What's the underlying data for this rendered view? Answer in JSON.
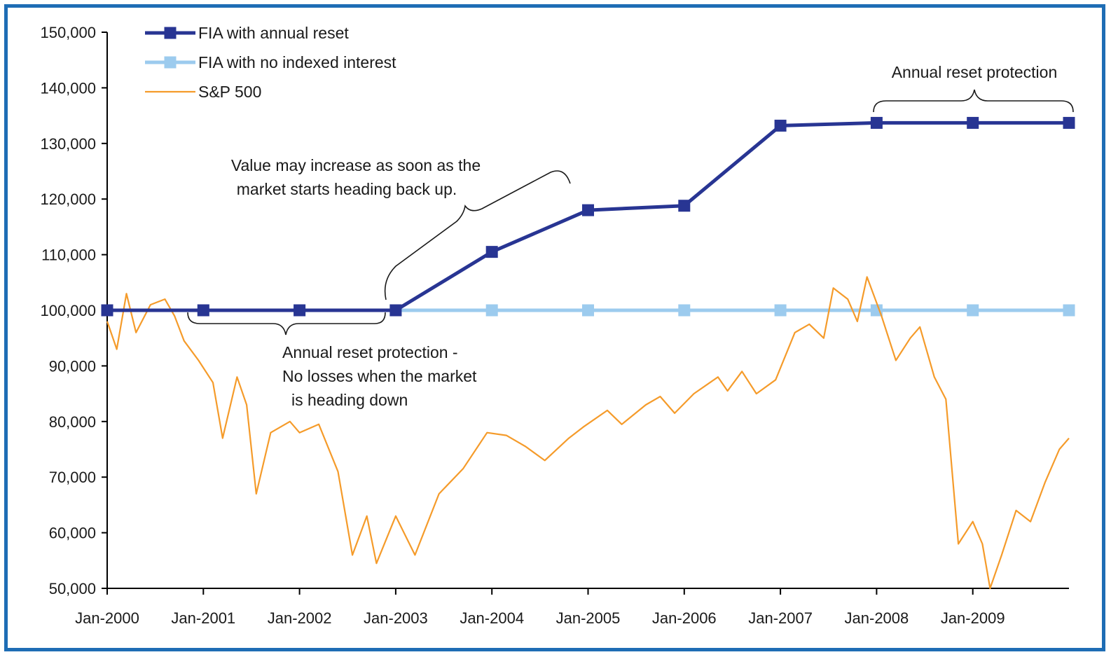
{
  "colors": {
    "frame": "#1e6db5",
    "fia_reset": "#283593",
    "fia_no_interest": "#9ccbee",
    "sp500": "#f59b2a",
    "axis": "#000000"
  },
  "chart_data": {
    "type": "line",
    "title": "",
    "xlabel": "",
    "ylabel": "",
    "ylim": [
      50000,
      150000
    ],
    "yticks": [
      "150,000",
      "140,000",
      "130,000",
      "120,000",
      "110,000",
      "100,000",
      "90,000",
      "80,000",
      "70,000",
      "60,000",
      "50,000"
    ],
    "xlim": [
      2000.0,
      2010.0
    ],
    "xticks": [
      "Jan-2000",
      "Jan-2001",
      "Jan-2002",
      "Jan-2003",
      "Jan-2004",
      "Jan-2005",
      "Jan-2006",
      "Jan-2007",
      "Jan-2008",
      "Jan-2009"
    ],
    "grid": false,
    "legend_position": "top-left",
    "series": [
      {
        "name": "FIA with annual reset",
        "marker": "square",
        "x": [
          2000,
          2001,
          2002,
          2003,
          2004,
          2005,
          2006,
          2007,
          2008,
          2009,
          2010
        ],
        "values": [
          100000,
          100000,
          100000,
          100000,
          110500,
          118000,
          118800,
          133200,
          133700,
          133700,
          133700
        ]
      },
      {
        "name": "FIA with no indexed interest",
        "marker": "square",
        "x": [
          2000,
          2001,
          2002,
          2003,
          2004,
          2005,
          2006,
          2007,
          2008,
          2009,
          2010
        ],
        "values": [
          100000,
          100000,
          100000,
          100000,
          100000,
          100000,
          100000,
          100000,
          100000,
          100000,
          100000
        ]
      },
      {
        "name": "S&P 500",
        "marker": "none",
        "x": [
          2000.0,
          2000.1,
          2000.2,
          2000.3,
          2000.45,
          2000.6,
          2000.7,
          2000.8,
          2000.95,
          2001.1,
          2001.2,
          2001.35,
          2001.45,
          2001.55,
          2001.7,
          2001.9,
          2002.0,
          2002.2,
          2002.4,
          2002.55,
          2002.7,
          2002.8,
          2003.0,
          2003.2,
          2003.45,
          2003.7,
          2003.95,
          2004.15,
          2004.35,
          2004.55,
          2004.8,
          2004.95,
          2005.2,
          2005.35,
          2005.6,
          2005.75,
          2005.9,
          2006.1,
          2006.35,
          2006.45,
          2006.6,
          2006.75,
          2006.95,
          2007.15,
          2007.3,
          2007.45,
          2007.55,
          2007.7,
          2007.8,
          2007.9,
          2008.05,
          2008.2,
          2008.35,
          2008.45,
          2008.6,
          2008.72,
          2008.85,
          2009.0,
          2009.1,
          2009.18,
          2009.3,
          2009.45,
          2009.6,
          2009.75,
          2009.9,
          2010.0
        ],
        "values": [
          98000,
          93000,
          103000,
          96000,
          101000,
          102000,
          99000,
          94500,
          91000,
          87000,
          77000,
          88000,
          83000,
          67000,
          78000,
          80000,
          78000,
          79500,
          71000,
          56000,
          63000,
          54500,
          63000,
          56000,
          67000,
          71500,
          78000,
          77500,
          75500,
          73000,
          77000,
          79000,
          82000,
          79500,
          83000,
          84500,
          81500,
          85000,
          88000,
          85500,
          89000,
          85000,
          87500,
          96000,
          97500,
          95000,
          104000,
          102000,
          98000,
          106000,
          99000,
          91000,
          95000,
          97000,
          88000,
          84000,
          58000,
          62000,
          58000,
          50000,
          56000,
          64000,
          62000,
          69000,
          75000,
          77000
        ]
      }
    ],
    "annotations": [
      {
        "lines": [
          "Value may increase as soon as the",
          "market starts heading back up."
        ]
      },
      {
        "lines": [
          "Annual reset protection -",
          "No losses when the market",
          "is heading down"
        ]
      },
      {
        "lines": [
          "Annual reset protection"
        ]
      }
    ]
  }
}
